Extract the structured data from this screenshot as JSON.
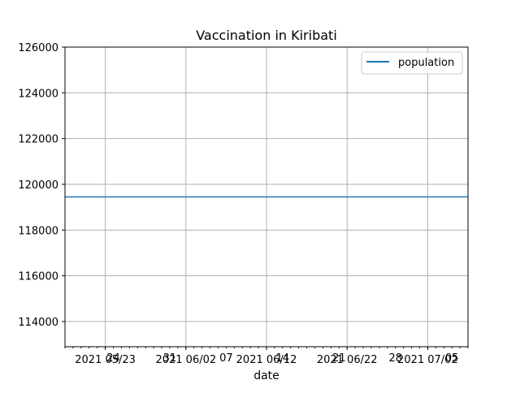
{
  "chart_data": {
    "type": "line",
    "title": "Vaccination in Kiribati",
    "xlabel": "date",
    "ylabel": "",
    "x_range": [
      "2021-05-18",
      "2021-07-07"
    ],
    "ylim": [
      112900,
      126000
    ],
    "grid": true,
    "legend": {
      "placement": "top-right"
    },
    "y_ticks": [
      114000,
      116000,
      118000,
      120000,
      122000,
      124000,
      126000
    ],
    "y_tick_labels": [
      "114000",
      "116000",
      "118000",
      "120000",
      "122000",
      "124000",
      "126000"
    ],
    "x_major_ticks": [
      "2021-05-23",
      "2021-06-02",
      "2021-06-12",
      "2021-06-22",
      "2021-07-02"
    ],
    "x_major_tick_labels": [
      "2021 05/23",
      "2021 06/02",
      "2021 06/12",
      "2021 06/22",
      "2021 07/02"
    ],
    "x_week_ticks": [
      "2021-05-24",
      "2021-05-31",
      "2021-06-07",
      "2021-06-14",
      "2021-06-21",
      "2021-06-28",
      "2021-07-05"
    ],
    "x_week_tick_labels": [
      "24",
      "31",
      "07",
      "14",
      "21",
      "28",
      "05"
    ],
    "series": [
      {
        "name": "population",
        "color": "#1f77b4",
        "x": [
          "2021-05-18",
          "2021-07-07"
        ],
        "y": [
          119449,
          119449
        ]
      }
    ]
  }
}
